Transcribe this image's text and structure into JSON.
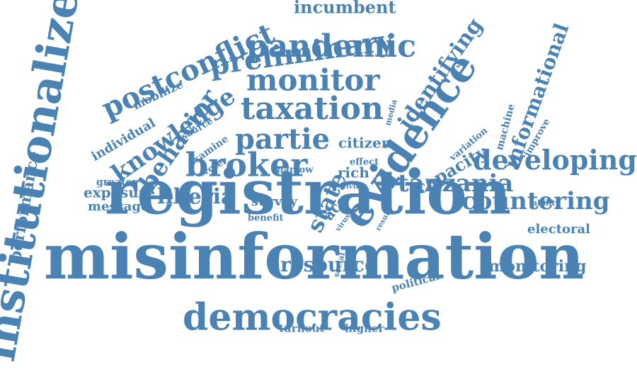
{
  "word_color": "#4a82b4",
  "words": [
    {
      "text": "registration"
    },
    {
      "text": "misinformation"
    },
    {
      "text": "democracies"
    },
    {
      "text": "institutionalized"
    },
    {
      "text": "evidence"
    },
    {
      "text": "postconflict"
    },
    {
      "text": "preliminary"
    },
    {
      "text": "pandemic"
    },
    {
      "text": "monitor"
    },
    {
      "text": "taxation"
    },
    {
      "text": "broker"
    },
    {
      "text": "tanzania"
    },
    {
      "text": "developing"
    },
    {
      "text": "countering"
    },
    {
      "text": "informational"
    },
    {
      "text": "identifying"
    },
    {
      "text": "knowledge"
    },
    {
      "text": "behavior"
    },
    {
      "text": "partie"
    },
    {
      "text": "state"
    },
    {
      "text": "liberia"
    },
    {
      "text": "resource"
    },
    {
      "text": "performance"
    },
    {
      "text": "incumbent"
    },
    {
      "text": "capacity"
    },
    {
      "text": "monitoring"
    },
    {
      "text": "electoral"
    },
    {
      "text": "exposure"
    },
    {
      "text": "message"
    },
    {
      "text": "individual"
    },
    {
      "text": "mobilize"
    },
    {
      "text": "greater"
    },
    {
      "text": "citizen"
    },
    {
      "text": "survey"
    },
    {
      "text": "rich"
    },
    {
      "text": "political"
    },
    {
      "text": "machine"
    },
    {
      "text": "variation"
    },
    {
      "text": "improve"
    },
    {
      "text": "examine"
    },
    {
      "text": "voter"
    },
    {
      "text": "source"
    },
    {
      "text": "narrow"
    },
    {
      "text": "effect"
    },
    {
      "text": "acc"
    },
    {
      "text": "benefit"
    },
    {
      "text": "turnout"
    },
    {
      "text": "higher"
    },
    {
      "text": "media"
    },
    {
      "text": "ability"
    },
    {
      "text": "civil"
    },
    {
      "text": "virus"
    },
    {
      "text": "result"
    },
    {
      "text": "social"
    }
  ]
}
